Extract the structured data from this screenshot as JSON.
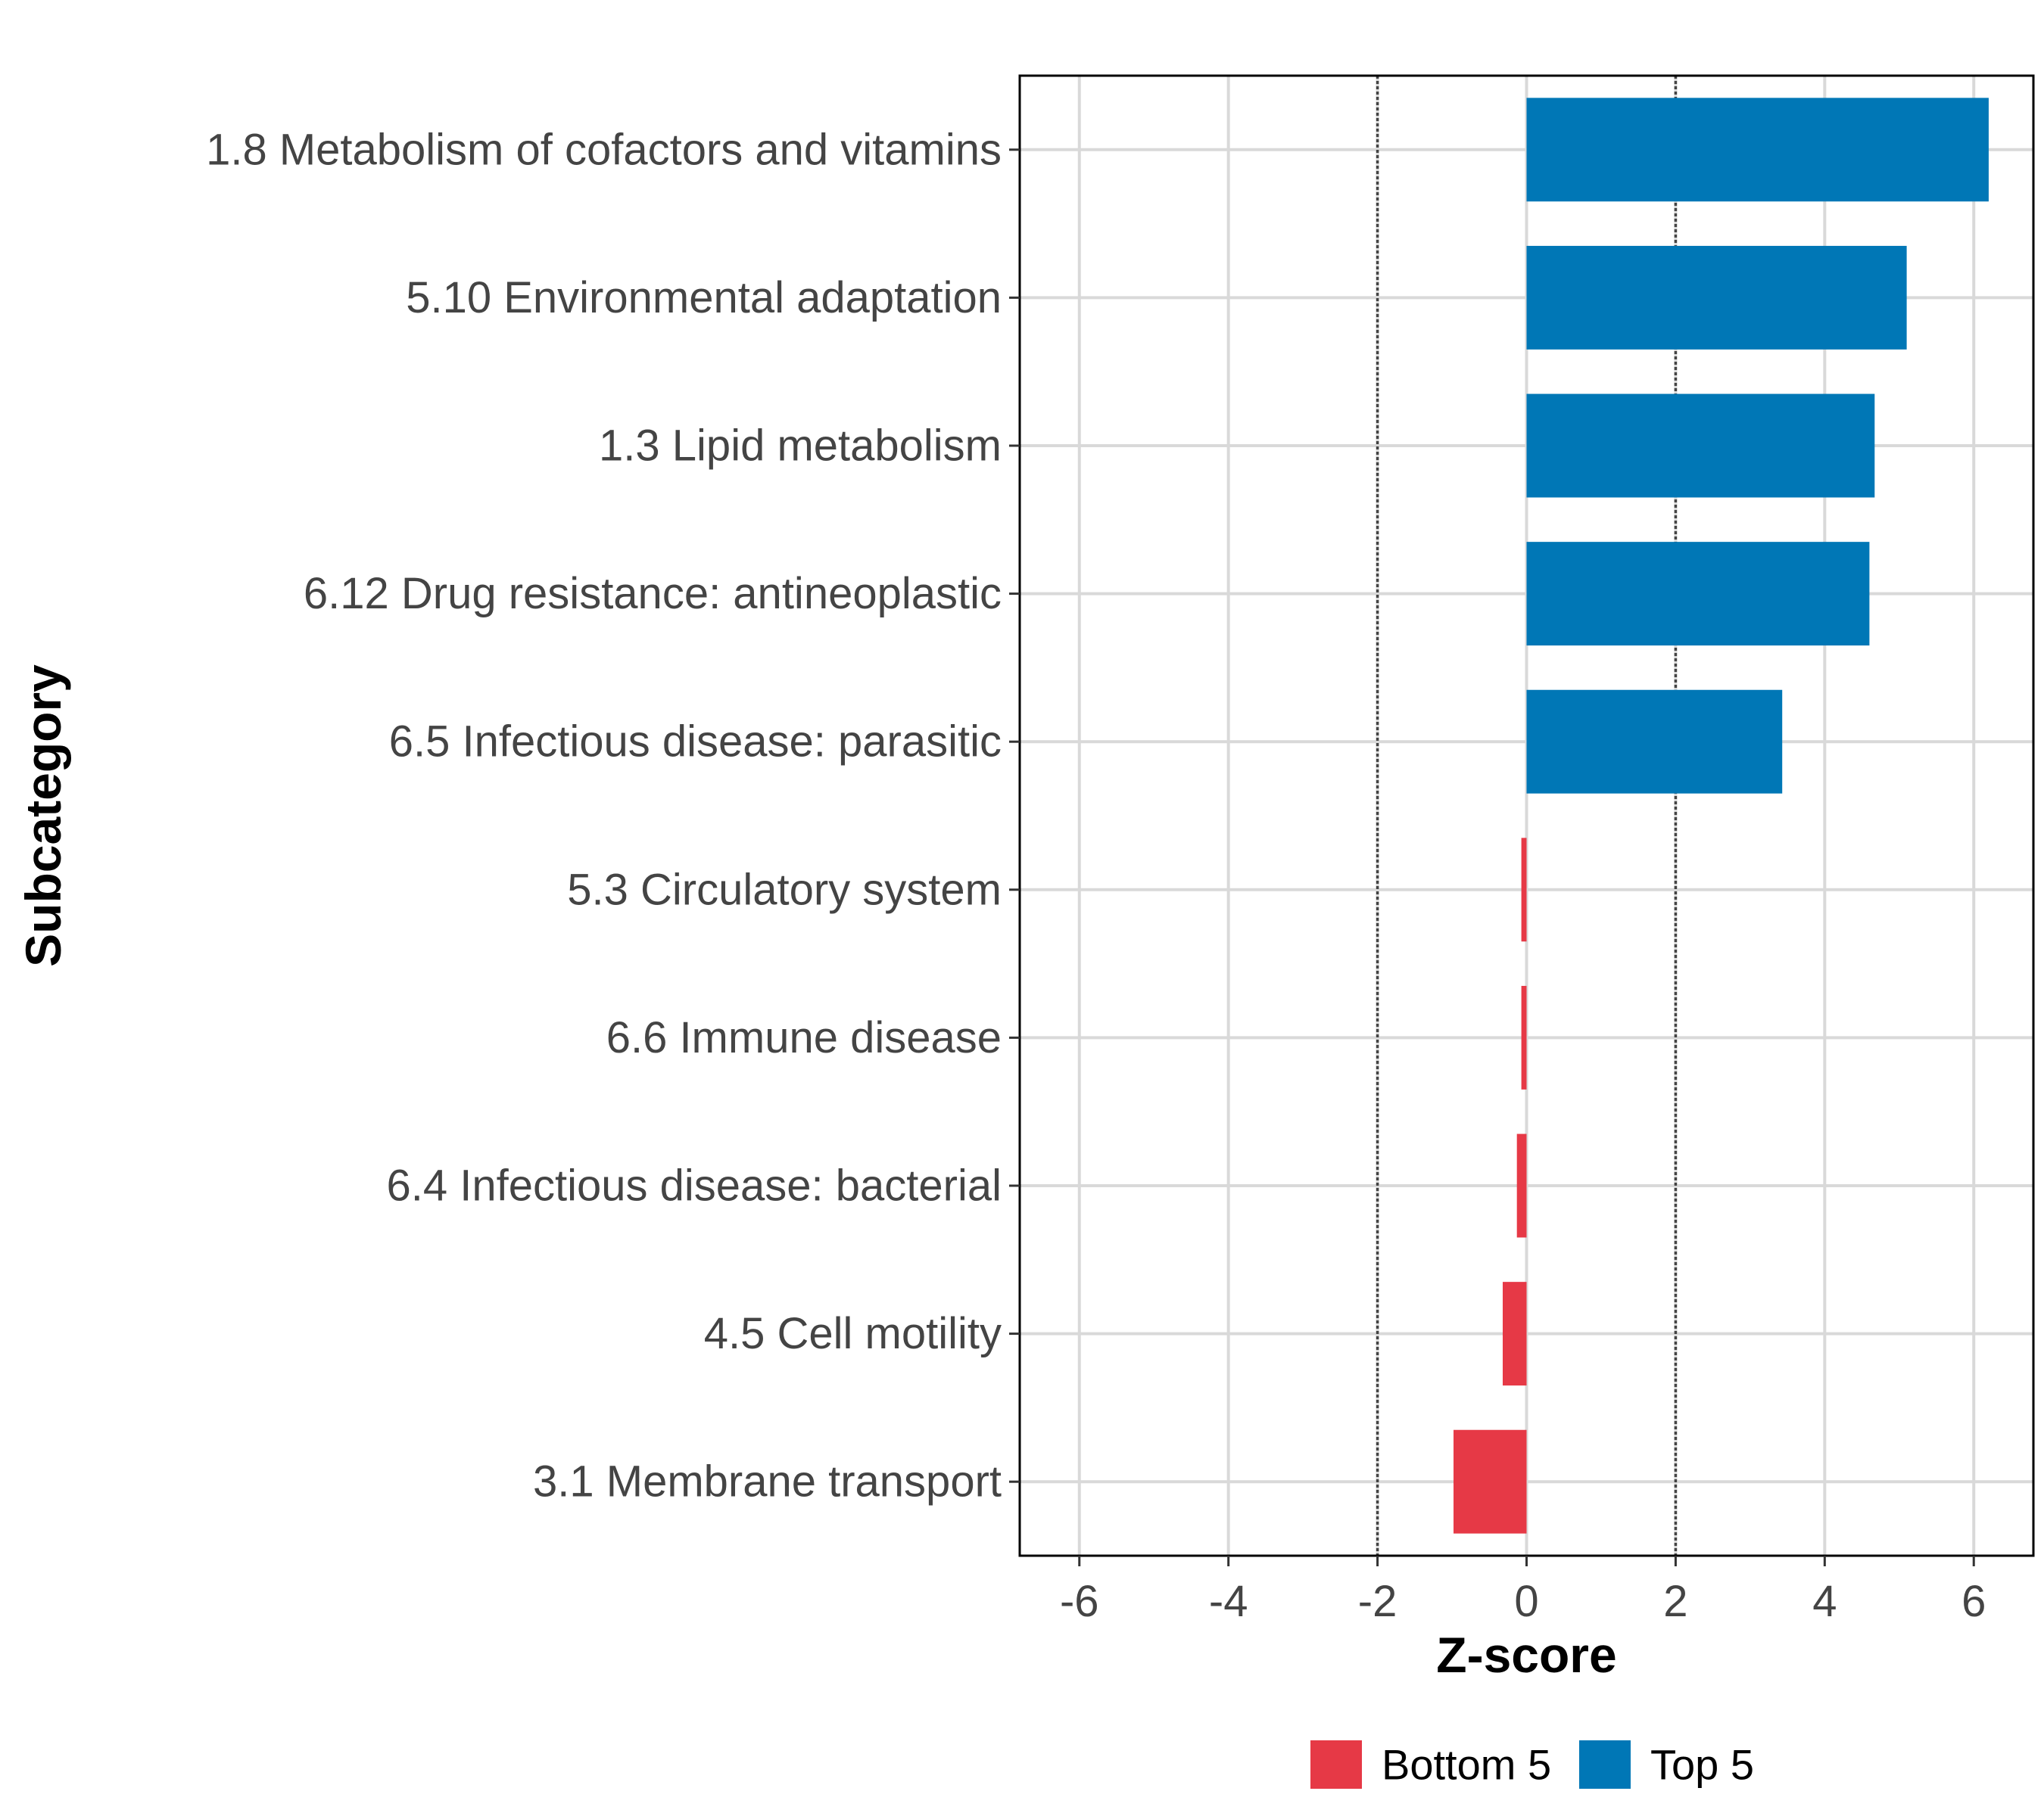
{
  "chart_data": {
    "type": "bar",
    "orientation": "horizontal",
    "title": "",
    "xlabel": "Z-score",
    "ylabel": "Subcategory",
    "xlim": [
      -6.8,
      6.8
    ],
    "x_ticks": [
      -6,
      -4,
      -2,
      0,
      2,
      4,
      6
    ],
    "x_tick_labels": [
      "-6",
      "-4",
      "-2",
      "0",
      "2",
      "4",
      "6"
    ],
    "reference_lines": [
      -2,
      2
    ],
    "grid": true,
    "legend_position": "bottom",
    "categories": [
      "1.8 Metabolism of cofactors and vitamins",
      "5.10 Environmental adaptation",
      "1.3 Lipid metabolism",
      "6.12 Drug resistance: antineoplastic",
      "6.5 Infectious disease: parasitic",
      "5.3 Circulatory system",
      "6.6 Immune disease",
      "6.4 Infectious disease: bacterial",
      "4.5 Cell motility",
      "3.1 Membrane transport"
    ],
    "values": [
      6.2,
      5.1,
      4.67,
      4.6,
      3.43,
      -0.07,
      -0.07,
      -0.13,
      -0.32,
      -0.98
    ],
    "groups": [
      "Top 5",
      "Top 5",
      "Top 5",
      "Top 5",
      "Top 5",
      "Bottom 5",
      "Bottom 5",
      "Bottom 5",
      "Bottom 5",
      "Bottom 5"
    ],
    "legend": [
      {
        "name": "Bottom 5",
        "color": "#E63946"
      },
      {
        "name": "Top 5",
        "color": "#0077B6"
      }
    ]
  }
}
